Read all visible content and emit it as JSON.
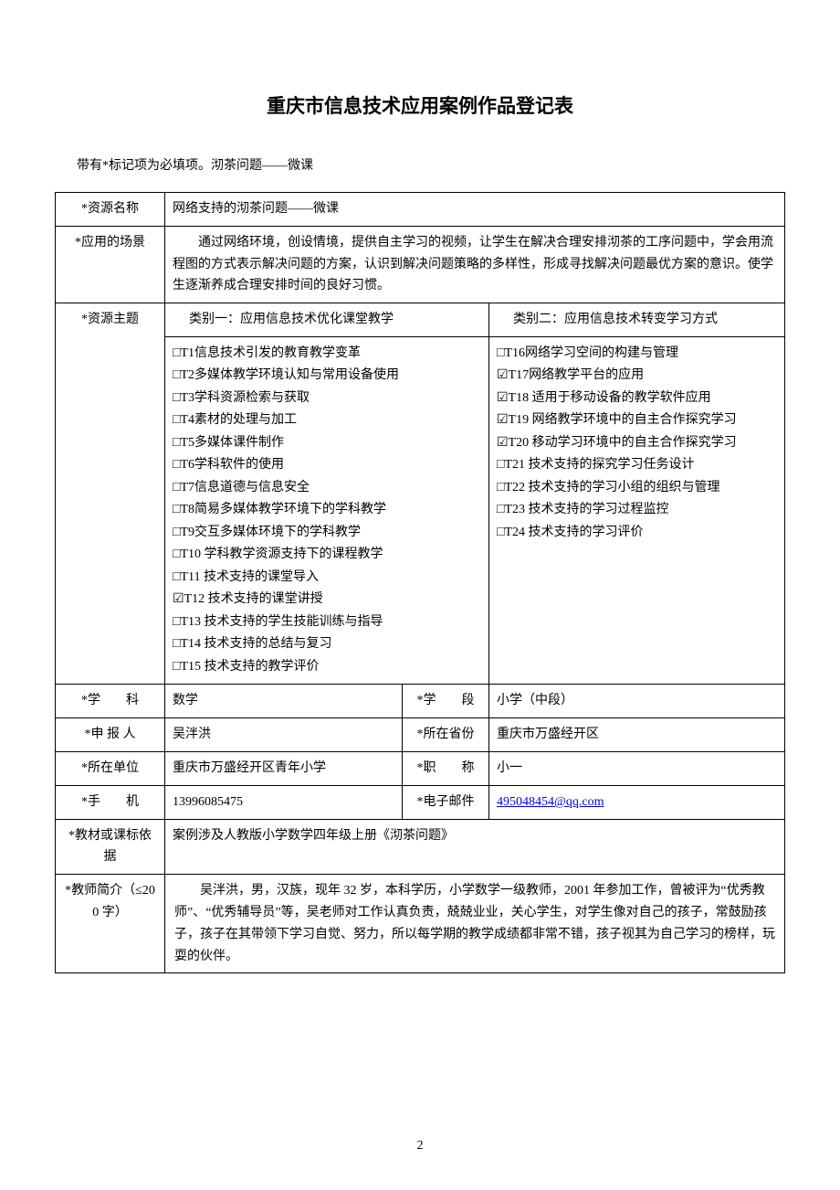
{
  "document": {
    "title": "重庆市信息技术应用案例作品登记表",
    "note": "带有*标记项为必填项。沏茶问题——微课",
    "page_number": "2"
  },
  "rows": {
    "resource_name": {
      "label": "*资源名称",
      "value": "网络支持的沏茶问题——微课"
    },
    "scenario": {
      "label": "*应用的场景",
      "value": "通过网络环境，创设情境，提供自主学习的视频，让学生在解决合理安排沏茶的工序问题中，学会用流程图的方式表示解决问题的方案，认识到解决问题策略的多样性，形成寻找解决问题最优方案的意识。使学生逐渐养成合理安排时间的良好习惯。"
    },
    "theme": {
      "label": "*资源主题",
      "cat1_header": "类别一：应用信息技术优化课堂教学",
      "cat2_header": "类别二：应用信息技术转变学习方式",
      "cat1_items": [
        "□T1信息技术引发的教育教学变革",
        "□T2多媒体教学环境认知与常用设备使用",
        "□T3学科资源检索与获取",
        "□T4素材的处理与加工",
        "□T5多媒体课件制作",
        "□T6学科软件的使用",
        "□T7信息道德与信息安全",
        "□T8简易多媒体教学环境下的学科教学",
        "□T9交互多媒体环境下的学科教学",
        "□T10 学科教学资源支持下的课程教学",
        "□T11 技术支持的课堂导入",
        "☑T12 技术支持的课堂讲授",
        "□T13 技术支持的学生技能训练与指导",
        "□T14 技术支持的总结与复习",
        "□T15 技术支持的教学评价"
      ],
      "cat2_items": [
        "□T16网络学习空间的构建与管理",
        "☑T17网络教学平台的应用",
        "☑T18 适用于移动设备的教学软件应用",
        "☑T19 网络教学环境中的自主合作探究学习",
        "☑T20 移动学习环境中的自主合作探究学习",
        "□T21 技术支持的探究学习任务设计",
        "□T22 技术支持的学习小组的组织与管理",
        "□T23 技术支持的学习过程监控",
        "□T24 技术支持的学习评价"
      ]
    },
    "subject": {
      "label": "*学　　科",
      "value": "数学",
      "label2": "*学　　段",
      "value2": "小学（中段）"
    },
    "applicant": {
      "label": "*申 报 人",
      "value": "吴泮洪",
      "label2": "*所在省份",
      "value2": "重庆市万盛经开区"
    },
    "unit": {
      "label": "*所在单位",
      "value": "重庆市万盛经开区青年小学",
      "label2": "*职　　称",
      "value2": "小一"
    },
    "phone": {
      "label": "*手　　机",
      "value": "13996085475",
      "label2": "*电子邮件",
      "value2": "495048454@qq.com"
    },
    "textbook": {
      "label": "*教材或课标依据",
      "value": "案例涉及人教版小学数学四年级上册《沏茶问题》"
    },
    "bio": {
      "label": "*教师简介（≤200 字）",
      "value": "吴泮洪，男，汉族，现年 32 岁，本科学历，小学数学一级教师，2001 年参加工作，曾被评为“优秀教师”、“优秀辅导员”等，吴老师对工作认真负责，兢兢业业，关心学生，对学生像对自己的孩子，常鼓励孩子，孩子在其带领下学习自觉、努力，所以每学期的教学成绩都非常不错，孩子视其为自己学习的榜样，玩耍的伙伴。"
    }
  }
}
